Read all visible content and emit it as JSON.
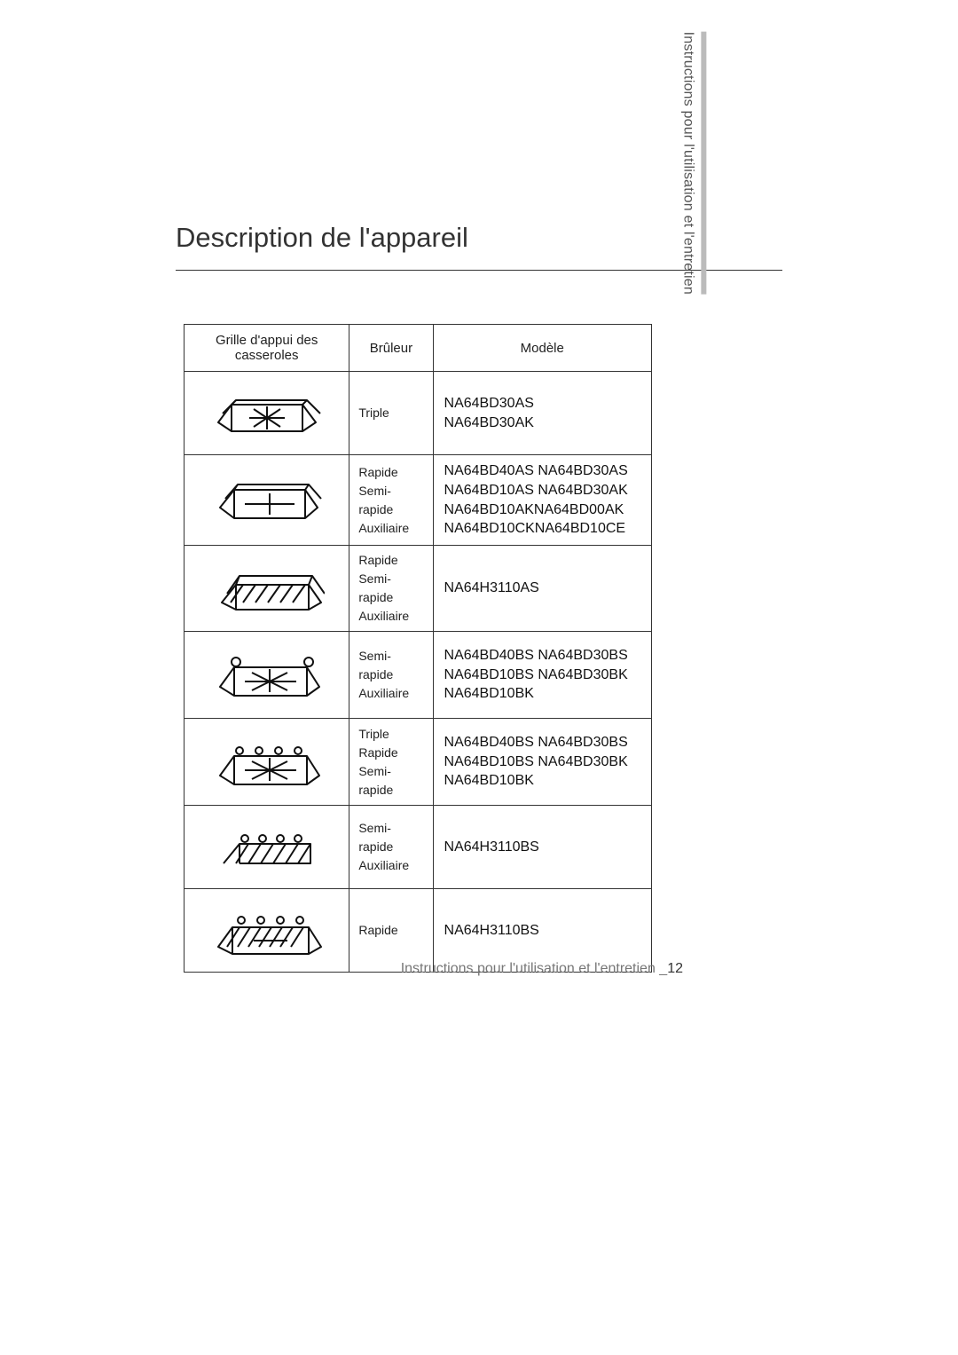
{
  "title": "Description de l'appareil",
  "sideTab": "Instructions pour l'utilisation et l'entretien",
  "footer": {
    "text": "Instructions pour l'utilisation et l'entretien _",
    "page": "12"
  },
  "headers": {
    "grille": "Grille d'appui des casseroles",
    "bruleur": "Brûleur",
    "modele": "Modèle"
  },
  "rows": [
    {
      "bruleur": "Triple",
      "modele": "NA64BD30AS\nNA64BD30AK"
    },
    {
      "bruleur": "Rapide\nSemi-rapide\nAuxiliaire",
      "modele": "NA64BD40AS NA64BD30AS\nNA64BD10AS NA64BD30AK\nNA64BD10AKNA64BD00AK\nNA64BD10CKNA64BD10CE"
    },
    {
      "bruleur": "Rapide\nSemi-rapide\nAuxiliaire",
      "modele": "NA64H3110AS"
    },
    {
      "bruleur": "Semi-rapide\nAuxiliaire",
      "modele": "NA64BD40BS NA64BD30BS\nNA64BD10BS NA64BD30BK\nNA64BD10BK"
    },
    {
      "bruleur": "Triple\nRapide\nSemi-rapide",
      "modele": "NA64BD40BS NA64BD30BS\nNA64BD10BS NA64BD30BK\nNA64BD10BK"
    },
    {
      "bruleur": "Semi-rapide\nAuxiliaire",
      "modele": "NA64H3110BS"
    },
    {
      "bruleur": "Rapide",
      "modele": "NA64H3110BS"
    }
  ],
  "colors": {
    "text": "#222222",
    "title": "#333333",
    "border": "#333333",
    "footer": "#777777",
    "sideBar": "#bbbbbb"
  }
}
